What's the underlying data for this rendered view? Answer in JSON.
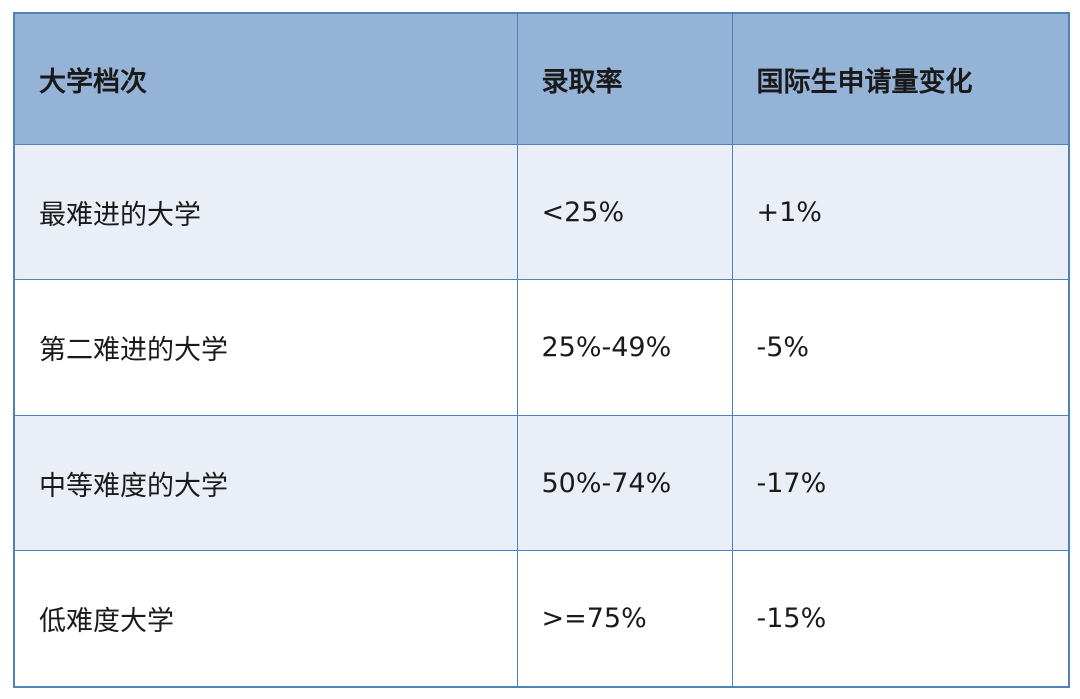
{
  "colors": {
    "header_bg": "#95b3d7",
    "odd_row_bg": "#e9eef7",
    "even_row_bg": "#ffffff",
    "border": "#4f81bd"
  },
  "table": {
    "headers": [
      "大学档次",
      "录取率",
      "国际生申请量变化"
    ],
    "rows": [
      [
        "最难进的大学",
        "<25%",
        "+1%"
      ],
      [
        "第二难进的大学",
        "25%-49%",
        "-5%"
      ],
      [
        "中等难度的大学",
        "50%-74%",
        "-17%"
      ],
      [
        "低难度大学",
        ">=75%",
        "-15%"
      ]
    ]
  }
}
